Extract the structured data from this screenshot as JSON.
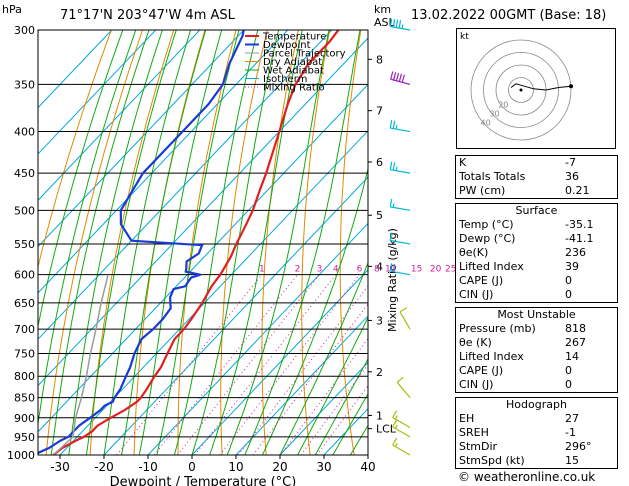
{
  "header": {
    "location": "71°17'N  203°47'W  4m  ASL",
    "datetime": "13.02.2022  00GMT  (Base: 18)",
    "pressure_unit": "hPa",
    "height_unit_line1": "km",
    "height_unit_line2": "ASL"
  },
  "colors": {
    "temperature": "#e02020",
    "dewpoint": "#1a3ad6",
    "parcel": "#9a9a9a",
    "dry_adiabat": "#e08a00",
    "wet_adiabat": "#11aa11",
    "isotherm": "#00a8e0",
    "mixing_ratio": "#d020a0",
    "wind_light": "#00b8d8",
    "wind_mid": "#9a20c0",
    "wind_low": "#a0c010"
  },
  "legend": [
    "Temperature",
    "Dewpoint",
    "Parcel Trajectory",
    "Dry Adiabat",
    "Wet Adiabat",
    "Isotherm",
    "Mixing Ratio"
  ],
  "chart_data": {
    "type": "line",
    "title": "",
    "xlabel": "Dewpoint / Temperature (°C)",
    "ylabel": "",
    "right_axis_label": "Mixing Ratio (g/kg)",
    "xlim": [
      -35,
      40
    ],
    "ylim": [
      1000,
      300
    ],
    "y_scale": "log",
    "skew": true,
    "x_ticks": [
      -30,
      -20,
      -10,
      0,
      10,
      20,
      30,
      40
    ],
    "p_ticks": [
      300,
      350,
      400,
      450,
      500,
      550,
      600,
      650,
      700,
      750,
      800,
      850,
      900,
      950,
      1000
    ],
    "km_ticks": [
      {
        "label": "8",
        "p": 326
      },
      {
        "label": "7",
        "p": 377
      },
      {
        "label": "6",
        "p": 436
      },
      {
        "label": "5",
        "p": 507
      },
      {
        "label": "4",
        "p": 586
      },
      {
        "label": "3",
        "p": 683
      },
      {
        "label": "2",
        "p": 790
      },
      {
        "label": "1",
        "p": 894
      },
      {
        "label": "LCL",
        "p": 928
      }
    ],
    "mixing_ratio_labels": [
      "1",
      "2",
      "3",
      "4",
      "6",
      "8",
      "10",
      "15",
      "20",
      "25"
    ],
    "series": [
      {
        "name": "Temperature",
        "points": [
          [
            1000,
            -31.5
          ],
          [
            980,
            -31
          ],
          [
            960,
            -29.5
          ],
          [
            950,
            -28.5
          ],
          [
            935,
            -27.8
          ],
          [
            920,
            -27.8
          ],
          [
            900,
            -26.5
          ],
          [
            880,
            -25
          ],
          [
            860,
            -24
          ],
          [
            850,
            -24
          ],
          [
            830,
            -24.5
          ],
          [
            800,
            -25.5
          ],
          [
            780,
            -26
          ],
          [
            750,
            -27.5
          ],
          [
            720,
            -29
          ],
          [
            700,
            -29
          ],
          [
            680,
            -29.5
          ],
          [
            650,
            -30.5
          ],
          [
            620,
            -32
          ],
          [
            600,
            -32.5
          ],
          [
            570,
            -34
          ],
          [
            550,
            -35.5
          ],
          [
            520,
            -37.5
          ],
          [
            500,
            -39
          ],
          [
            470,
            -42
          ],
          [
            450,
            -44
          ],
          [
            420,
            -47.5
          ],
          [
            400,
            -50
          ],
          [
            370,
            -54
          ],
          [
            350,
            -56.5
          ],
          [
            330,
            -58
          ],
          [
            310,
            -58
          ],
          [
            300,
            -58.5
          ]
        ]
      },
      {
        "name": "Dewpoint",
        "points": [
          [
            1000,
            -36
          ],
          [
            980,
            -34
          ],
          [
            960,
            -33
          ],
          [
            950,
            -32
          ],
          [
            935,
            -32
          ],
          [
            920,
            -32
          ],
          [
            900,
            -31.2
          ],
          [
            880,
            -30.5
          ],
          [
            870,
            -30.5
          ],
          [
            860,
            -29.5
          ],
          [
            850,
            -30
          ],
          [
            830,
            -30.5
          ],
          [
            800,
            -32
          ],
          [
            780,
            -33
          ],
          [
            750,
            -35
          ],
          [
            720,
            -36.5
          ],
          [
            700,
            -36
          ],
          [
            680,
            -36
          ],
          [
            660,
            -36.5
          ],
          [
            640,
            -39
          ],
          [
            625,
            -40
          ],
          [
            620,
            -38
          ],
          [
            605,
            -38.5
          ],
          [
            600,
            -37
          ],
          [
            595,
            -41
          ],
          [
            590,
            -41.5
          ],
          [
            578,
            -43
          ],
          [
            565,
            -42
          ],
          [
            552,
            -43
          ],
          [
            545,
            -60
          ],
          [
            520,
            -66
          ],
          [
            500,
            -69
          ],
          [
            450,
            -72
          ],
          [
            400,
            -72
          ],
          [
            370,
            -72
          ],
          [
            350,
            -73
          ],
          [
            330,
            -76
          ],
          [
            305,
            -79
          ],
          [
            300,
            -80
          ]
        ]
      },
      {
        "name": "Parcel Trajectory",
        "points": [
          [
            1000,
            -31.5
          ],
          [
            950,
            -31
          ],
          [
            928,
            -32.5
          ],
          [
            900,
            -34.5
          ],
          [
            850,
            -37.5
          ],
          [
            800,
            -41
          ],
          [
            750,
            -45
          ],
          [
            700,
            -49
          ],
          [
            650,
            -53.5
          ],
          [
            600,
            -58
          ]
        ]
      }
    ],
    "wind_barbs": [
      {
        "p": 300,
        "dir": 280,
        "spd": 45
      },
      {
        "p": 350,
        "dir": 285,
        "spd": 50
      },
      {
        "p": 400,
        "dir": 280,
        "spd": 25
      },
      {
        "p": 450,
        "dir": 280,
        "spd": 25
      },
      {
        "p": 500,
        "dir": 280,
        "spd": 15
      },
      {
        "p": 550,
        "dir": 280,
        "spd": 10
      },
      {
        "p": 600,
        "dir": 280,
        "spd": 20
      },
      {
        "p": 700,
        "dir": 330,
        "spd": 10
      },
      {
        "p": 850,
        "dir": 320,
        "spd": 10
      },
      {
        "p": 925,
        "dir": 300,
        "spd": 15
      },
      {
        "p": 950,
        "dir": 300,
        "spd": 15
      },
      {
        "p": 1000,
        "dir": 300,
        "spd": 15
      }
    ],
    "hodograph": {
      "label": "kt",
      "ring_labels": [
        "20",
        "30",
        "40"
      ],
      "trace": [
        [
          -8,
          2
        ],
        [
          -4,
          5
        ],
        [
          3,
          3
        ],
        [
          10,
          1
        ],
        [
          20,
          0
        ],
        [
          30,
          2
        ],
        [
          40,
          3
        ]
      ]
    }
  },
  "indices": [
    {
      "label": "K",
      "value": "-7"
    },
    {
      "label": "Totals Totals",
      "value": "36"
    },
    {
      "label": "PW (cm)",
      "value": "0.21"
    }
  ],
  "surface": {
    "title": "Surface",
    "rows": [
      {
        "label": "Temp (°C)",
        "value": "-35.1"
      },
      {
        "label": "Dewp (°C)",
        "value": "-41.1"
      },
      {
        "label": "θe(K)",
        "value": "236"
      },
      {
        "label": "Lifted Index",
        "value": "39"
      },
      {
        "label": "CAPE (J)",
        "value": "0"
      },
      {
        "label": "CIN (J)",
        "value": "0"
      }
    ]
  },
  "most_unstable": {
    "title": "Most Unstable",
    "rows": [
      {
        "label": "Pressure (mb)",
        "value": "818"
      },
      {
        "label": "θe (K)",
        "value": "267"
      },
      {
        "label": "Lifted Index",
        "value": "14"
      },
      {
        "label": "CAPE (J)",
        "value": "0"
      },
      {
        "label": "CIN (J)",
        "value": "0"
      }
    ]
  },
  "hodograph_table": {
    "title": "Hodograph",
    "rows": [
      {
        "label": "EH",
        "value": "27"
      },
      {
        "label": "SREH",
        "value": "-1"
      },
      {
        "label": "StmDir",
        "value": "296°"
      },
      {
        "label": "StmSpd (kt)",
        "value": "15"
      }
    ]
  },
  "credit": "© weatheronline.co.uk"
}
